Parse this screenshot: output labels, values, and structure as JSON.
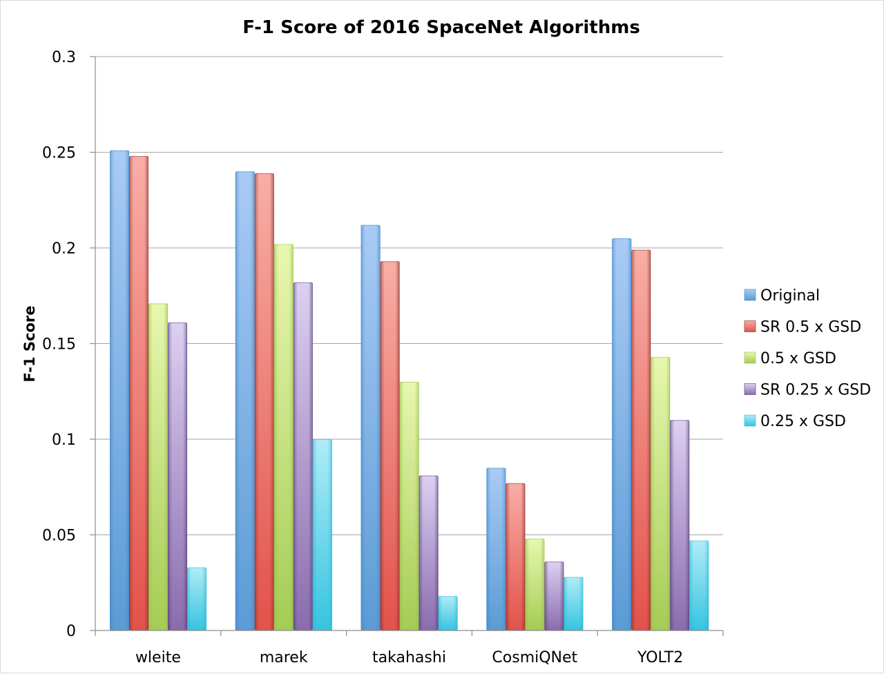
{
  "chart_data": {
    "type": "bar",
    "title": "F-1 Score of 2016 SpaceNet Algorithms",
    "xlabel": "",
    "ylabel": "F-1 Score",
    "ylim": [
      0,
      0.3
    ],
    "yticks": [
      "0",
      "0.05",
      "0.1",
      "0.15",
      "0.2",
      "0.25",
      "0.3"
    ],
    "yticks_values": [
      0,
      0.05,
      0.1,
      0.15,
      0.2,
      0.25,
      0.3
    ],
    "grid": true,
    "legend_position": "right",
    "categories": [
      "wleite",
      "marek",
      "takahashi",
      "CosmiQNet",
      "YOLT2"
    ],
    "series": [
      {
        "name": "Original",
        "color": "#5b9bd5",
        "light": "#a9cbf5",
        "dark": "#3d86c6",
        "values": [
          0.251,
          0.24,
          0.212,
          0.085,
          0.205
        ]
      },
      {
        "name": "SR 0.5 x GSD",
        "color": "#e2524a",
        "light": "#f8aea6",
        "dark": "#8a2a26",
        "values": [
          0.248,
          0.239,
          0.193,
          0.077,
          0.199
        ]
      },
      {
        "name": "0.5 x GSD",
        "color": "#a5cc55",
        "light": "#e8f7b0",
        "dark": "#92be45",
        "values": [
          0.171,
          0.202,
          0.13,
          0.048,
          0.143
        ]
      },
      {
        "name": "SR 0.25 x GSD",
        "color": "#8a6cae",
        "light": "#ddd0f2",
        "dark": "#4f3a6e",
        "values": [
          0.161,
          0.182,
          0.081,
          0.036,
          0.11
        ]
      },
      {
        "name": "0.25 x GSD",
        "color": "#36c4e0",
        "light": "#b0ecf7",
        "dark": "#2cb8d6",
        "values": [
          0.033,
          0.1,
          0.018,
          0.028,
          0.047
        ]
      }
    ]
  }
}
